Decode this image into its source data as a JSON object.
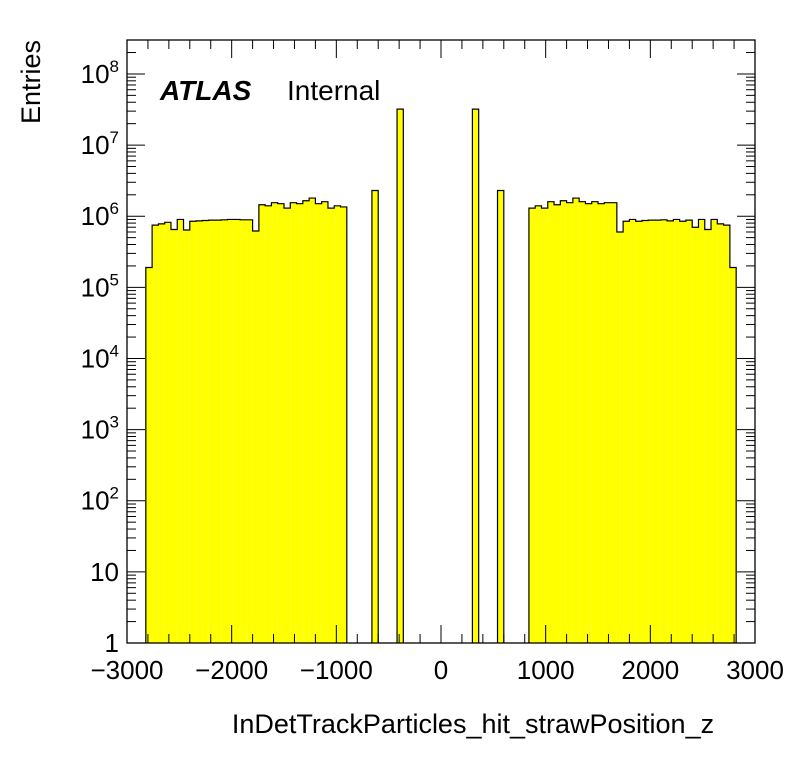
{
  "chart_data": {
    "type": "bar",
    "xlabel": "InDetTrackParticles_hit_strawPosition_z",
    "ylabel": "Entries",
    "xlim": [
      -3000,
      3000
    ],
    "ylim": [
      1,
      300000000
    ],
    "yscale": "log",
    "bin_width": 60,
    "x_tick_labels": [
      "−3000",
      "−2000",
      "−1000",
      "0",
      "1000",
      "2000",
      "3000"
    ],
    "x_tick_values": [
      -3000,
      -2000,
      -1000,
      0,
      1000,
      2000,
      3000
    ],
    "y_tick_values": [
      1,
      10,
      100,
      1000,
      10000,
      100000,
      1000000,
      10000000,
      100000000
    ],
    "y_tick_labels": [
      {
        "base": "1",
        "exp": ""
      },
      {
        "base": "10",
        "exp": ""
      },
      {
        "base": "10",
        "exp": "2"
      },
      {
        "base": "10",
        "exp": "3"
      },
      {
        "base": "10",
        "exp": "4"
      },
      {
        "base": "10",
        "exp": "5"
      },
      {
        "base": "10",
        "exp": "6"
      },
      {
        "base": "10",
        "exp": "7"
      },
      {
        "base": "10",
        "exp": "8"
      }
    ],
    "fill_color": "#ffff00",
    "line_color": "#000000",
    "bins": [
      {
        "x": -2790,
        "y": 190000
      },
      {
        "x": -2730,
        "y": 750000
      },
      {
        "x": -2670,
        "y": 780000
      },
      {
        "x": -2610,
        "y": 820000
      },
      {
        "x": -2550,
        "y": 650000
      },
      {
        "x": -2490,
        "y": 900000
      },
      {
        "x": -2430,
        "y": 640000
      },
      {
        "x": -2370,
        "y": 850000
      },
      {
        "x": -2310,
        "y": 860000
      },
      {
        "x": -2250,
        "y": 870000
      },
      {
        "x": -2190,
        "y": 880000
      },
      {
        "x": -2130,
        "y": 880000
      },
      {
        "x": -2070,
        "y": 890000
      },
      {
        "x": -2010,
        "y": 900000
      },
      {
        "x": -1950,
        "y": 900000
      },
      {
        "x": -1890,
        "y": 890000
      },
      {
        "x": -1830,
        "y": 890000
      },
      {
        "x": -1770,
        "y": 620000
      },
      {
        "x": -1710,
        "y": 1450000
      },
      {
        "x": -1650,
        "y": 1400000
      },
      {
        "x": -1590,
        "y": 1550000
      },
      {
        "x": -1530,
        "y": 1500000
      },
      {
        "x": -1470,
        "y": 1300000
      },
      {
        "x": -1410,
        "y": 1550000
      },
      {
        "x": -1350,
        "y": 1500000
      },
      {
        "x": -1290,
        "y": 1650000
      },
      {
        "x": -1230,
        "y": 1800000
      },
      {
        "x": -1170,
        "y": 1500000
      },
      {
        "x": -1110,
        "y": 1600000
      },
      {
        "x": -1050,
        "y": 1300000
      },
      {
        "x": -990,
        "y": 1400000
      },
      {
        "x": -930,
        "y": 1350000
      },
      {
        "x": -630,
        "y": 2300000
      },
      {
        "x": -390,
        "y": 32000000
      },
      {
        "x": 330,
        "y": 32000000
      },
      {
        "x": 570,
        "y": 2300000
      },
      {
        "x": 870,
        "y": 1300000
      },
      {
        "x": 930,
        "y": 1400000
      },
      {
        "x": 990,
        "y": 1300000
      },
      {
        "x": 1050,
        "y": 1600000
      },
      {
        "x": 1110,
        "y": 1450000
      },
      {
        "x": 1170,
        "y": 1650000
      },
      {
        "x": 1230,
        "y": 1550000
      },
      {
        "x": 1290,
        "y": 1800000
      },
      {
        "x": 1350,
        "y": 1600000
      },
      {
        "x": 1410,
        "y": 1500000
      },
      {
        "x": 1470,
        "y": 1600000
      },
      {
        "x": 1530,
        "y": 1500000
      },
      {
        "x": 1590,
        "y": 1550000
      },
      {
        "x": 1650,
        "y": 1550000
      },
      {
        "x": 1710,
        "y": 600000
      },
      {
        "x": 1770,
        "y": 850000
      },
      {
        "x": 1830,
        "y": 900000
      },
      {
        "x": 1890,
        "y": 850000
      },
      {
        "x": 1950,
        "y": 870000
      },
      {
        "x": 2010,
        "y": 880000
      },
      {
        "x": 2070,
        "y": 880000
      },
      {
        "x": 2130,
        "y": 890000
      },
      {
        "x": 2190,
        "y": 860000
      },
      {
        "x": 2250,
        "y": 900000
      },
      {
        "x": 2310,
        "y": 850000
      },
      {
        "x": 2370,
        "y": 880000
      },
      {
        "x": 2430,
        "y": 700000
      },
      {
        "x": 2490,
        "y": 900000
      },
      {
        "x": 2550,
        "y": 650000
      },
      {
        "x": 2610,
        "y": 900000
      },
      {
        "x": 2670,
        "y": 780000
      },
      {
        "x": 2730,
        "y": 750000
      },
      {
        "x": 2790,
        "y": 190000
      }
    ]
  },
  "label": {
    "experiment": "ATLAS",
    "status": "Internal"
  }
}
